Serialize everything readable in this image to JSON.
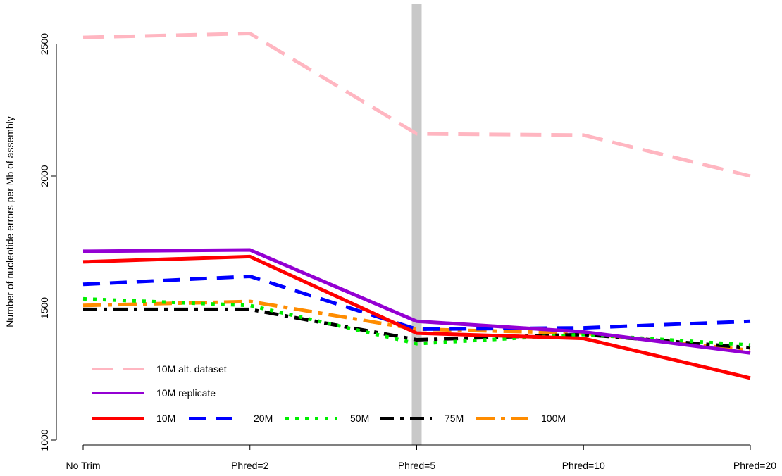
{
  "chart_data": {
    "type": "line",
    "title": "",
    "xlabel": "",
    "ylabel": "Number of nucleotide errors per Mb of assembly",
    "categories": [
      "No Trim",
      "Phred=2",
      "Phred=5",
      "Phred=10",
      "Phred=20"
    ],
    "ylim": [
      1000,
      2600
    ],
    "yticks": [
      1000,
      1500,
      2000,
      2500
    ],
    "grid": false,
    "legend_position": "bottom-left",
    "highlight_category": "Phred=5",
    "highlight_color": "#c8c8c8",
    "series": [
      {
        "name": "10M alt. dataset",
        "color": "#ffb6c1",
        "dash": "long-dash",
        "values": [
          2525,
          2540,
          2160,
          2155,
          2000
        ]
      },
      {
        "name": "10M replicate",
        "color": "#9400d3",
        "dash": "solid",
        "values": [
          1715,
          1720,
          1450,
          1410,
          1330
        ]
      },
      {
        "name": "10M",
        "color": "#ff0000",
        "dash": "solid",
        "values": [
          1675,
          1695,
          1405,
          1385,
          1235
        ]
      },
      {
        "name": "20M",
        "color": "#0000ff",
        "dash": "dash",
        "values": [
          1590,
          1620,
          1420,
          1425,
          1450
        ]
      },
      {
        "name": "50M",
        "color": "#00ee00",
        "dash": "dot",
        "values": [
          1535,
          1510,
          1365,
          1400,
          1360
        ]
      },
      {
        "name": "75M",
        "color": "#000000",
        "dash": "dash-dot",
        "values": [
          1495,
          1495,
          1380,
          1400,
          1350
        ]
      },
      {
        "name": "100M",
        "color": "#ff8c00",
        "dash": "long-dash-dot",
        "values": [
          1510,
          1525,
          1420,
          1405,
          1340
        ]
      }
    ],
    "legend_rows": [
      [
        "10M alt. dataset"
      ],
      [
        "10M replicate"
      ],
      [
        "10M",
        "20M",
        "50M",
        "75M",
        "100M"
      ]
    ]
  }
}
